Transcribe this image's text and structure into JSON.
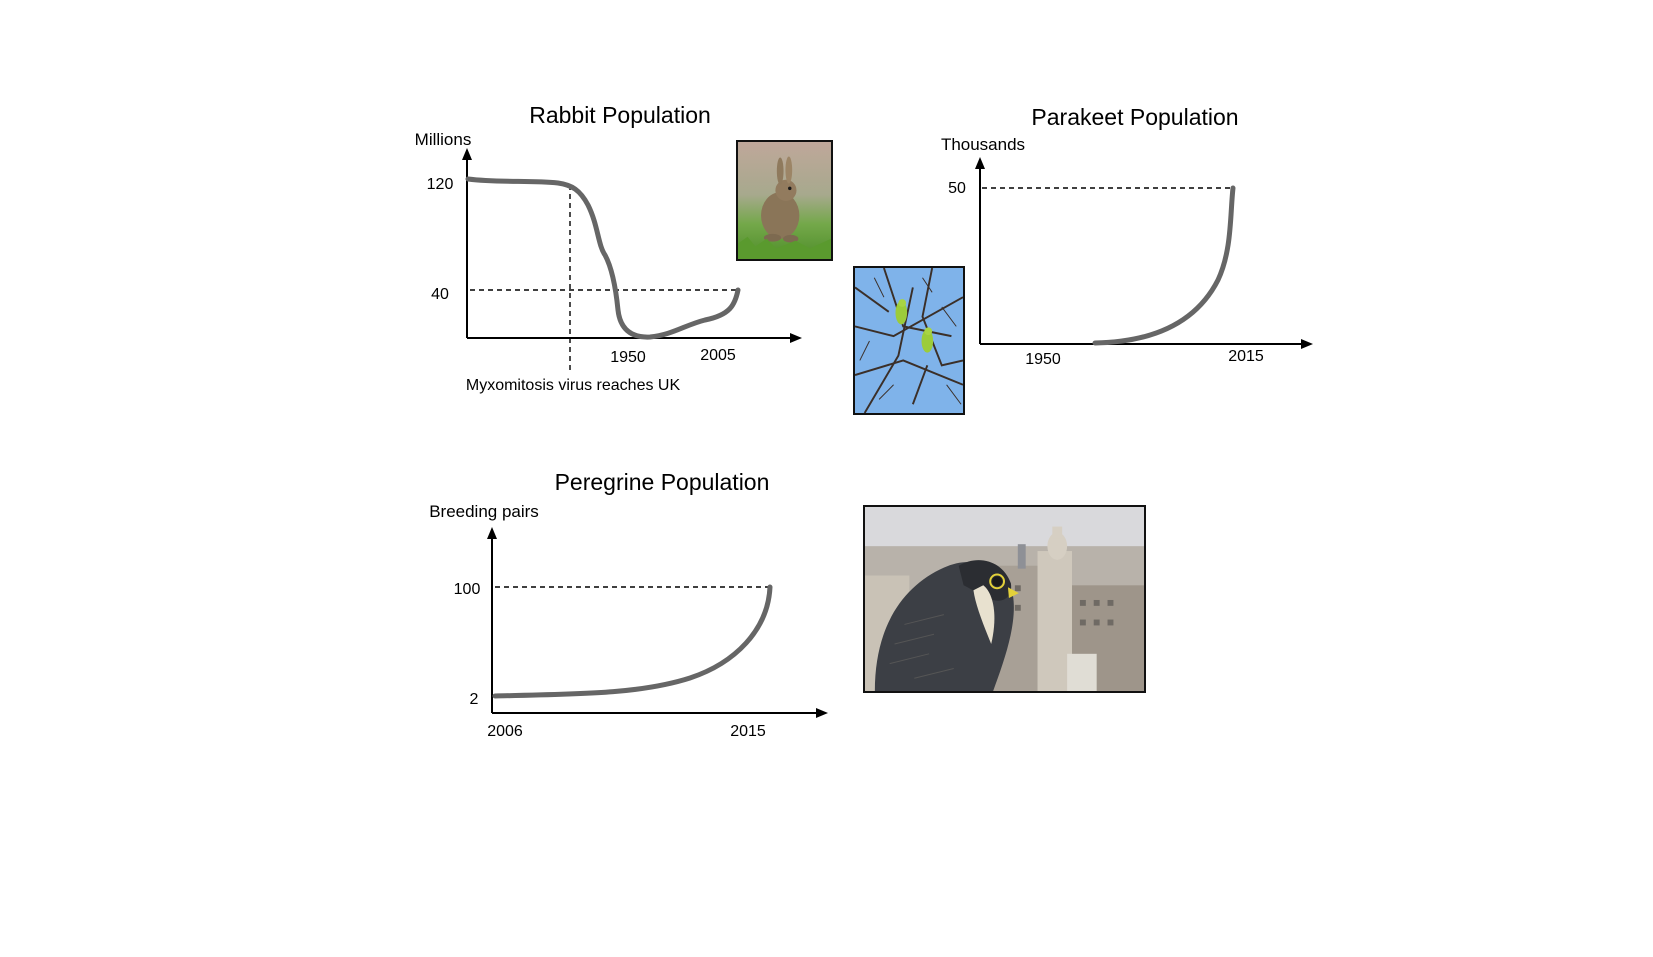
{
  "chart_data": [
    {
      "type": "line",
      "title": "Rabbit Population",
      "ylabel": "Millions",
      "annotation": "Myxomitosis virus reaches UK",
      "y_ticks": [
        "120",
        "40"
      ],
      "x_ticks": [
        "1950",
        "2005"
      ],
      "series": [
        {
          "values": [
            120,
            120,
            119,
            100,
            60,
            15,
            2,
            6,
            14,
            20,
            40
          ]
        }
      ],
      "colors": {
        "line": "#666666"
      }
    },
    {
      "type": "line",
      "title": "Parakeet Population",
      "ylabel": "Thousands",
      "y_ticks": [
        "50"
      ],
      "x_ticks": [
        "1950",
        "2015"
      ],
      "series": [
        {
          "values": [
            0,
            0.5,
            3,
            9,
            20,
            35,
            50
          ]
        }
      ],
      "colors": {
        "line": "#666666"
      }
    },
    {
      "type": "line",
      "title": "Peregrine Population",
      "ylabel": "Breeding pairs",
      "y_ticks": [
        "100",
        "2"
      ],
      "x_ticks": [
        "2006",
        "2015"
      ],
      "series": [
        {
          "x": [
            2006,
            2008,
            2010,
            2012,
            2013,
            2014,
            2015
          ],
          "values": [
            2,
            3,
            8,
            22,
            38,
            62,
            100
          ]
        }
      ],
      "colors": {
        "line": "#666666"
      }
    }
  ],
  "photos": [
    {
      "subject": "rabbit-photo"
    },
    {
      "subject": "parakeets-photo"
    },
    {
      "subject": "peregrine-falcon-photo"
    }
  ]
}
